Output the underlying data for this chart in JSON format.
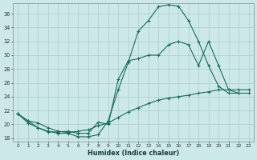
{
  "xlabel": "Humidex (Indice chaleur)",
  "bg_color": "#cce8e8",
  "line_color": "#1a6b5a",
  "grid_color": "#aacccc",
  "xlim": [
    -0.5,
    23.5
  ],
  "ylim": [
    17.5,
    37.5
  ],
  "xticks": [
    0,
    1,
    2,
    3,
    4,
    5,
    6,
    7,
    8,
    9,
    10,
    11,
    12,
    13,
    14,
    15,
    16,
    17,
    18,
    19,
    20,
    21,
    22,
    23
  ],
  "yticks": [
    18,
    20,
    22,
    24,
    26,
    28,
    30,
    32,
    34,
    36
  ],
  "curve1_x": [
    0,
    1,
    2,
    3,
    4,
    5,
    6,
    7,
    8,
    9,
    10,
    11,
    12,
    13,
    14,
    15,
    16,
    17,
    18,
    19,
    20,
    21,
    22
  ],
  "curve1_y": [
    21.5,
    20.5,
    19.5,
    19.0,
    18.7,
    18.7,
    18.2,
    18.2,
    18.5,
    20.5,
    25.0,
    29.0,
    33.5,
    35.0,
    37.0,
    37.3,
    37.1,
    35.0,
    32.0,
    28.5,
    25.5,
    24.5,
    24.5
  ],
  "curve2_x": [
    0,
    1,
    2,
    3,
    4,
    5,
    6,
    7,
    8,
    9,
    10,
    11,
    12,
    13,
    14,
    15,
    16,
    17,
    18,
    19,
    20,
    21,
    22,
    23
  ],
  "curve2_y": [
    21.5,
    20.2,
    19.5,
    18.9,
    18.9,
    19.0,
    18.7,
    18.7,
    20.3,
    20.0,
    26.5,
    29.2,
    29.5,
    30.0,
    30.0,
    31.5,
    32.0,
    31.5,
    28.5,
    32.0,
    28.5,
    25.0,
    24.5,
    24.5
  ],
  "curve3_x": [
    0,
    1,
    2,
    3,
    4,
    5,
    6,
    7,
    8,
    9,
    10,
    11,
    12,
    13,
    14,
    15,
    16,
    17,
    18,
    19,
    20,
    21,
    22,
    23
  ],
  "curve3_y": [
    21.5,
    20.5,
    20.2,
    19.5,
    19.0,
    18.8,
    19.0,
    19.2,
    19.8,
    20.2,
    21.0,
    21.8,
    22.4,
    23.0,
    23.5,
    23.8,
    24.0,
    24.2,
    24.5,
    24.7,
    25.0,
    25.0,
    25.0,
    25.0
  ]
}
